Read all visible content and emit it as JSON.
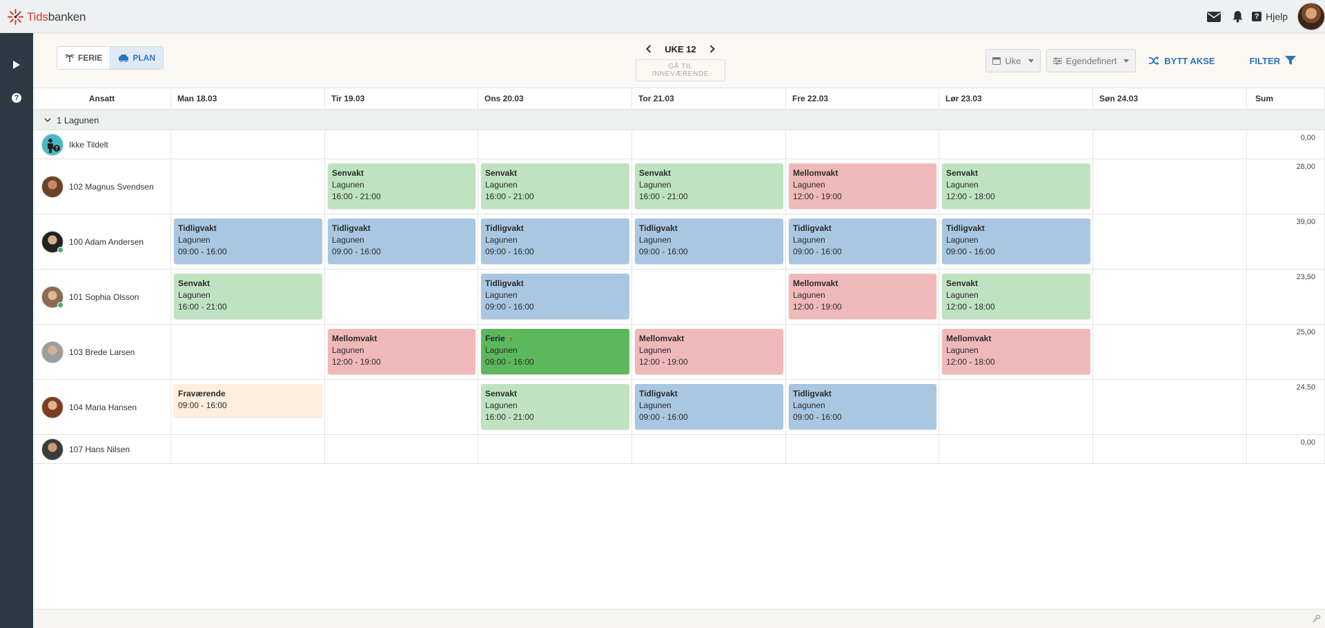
{
  "app": {
    "brand_prefix": "Tids",
    "brand_suffix": "banken",
    "help_label": "Hjelp"
  },
  "toolbar": {
    "ferie_label": "FERIE",
    "plan_label": "PLAN",
    "week_label": "UKE 12",
    "goto_current_label": "GÅ TIL INNEVÆRENDE",
    "period_select": "Uke",
    "view_select": "Egendefinert",
    "swap_axis_label": "BYTT AKSE",
    "filter_label": "FILTER"
  },
  "columns": {
    "employee_header": "Ansatt",
    "sum_header": "Sum",
    "days": [
      "Man 18.03",
      "Tir 19.03",
      "Ons 20.03",
      "Tor 21.03",
      "Fre 22.03",
      "Lør 23.03",
      "Søn 24.03"
    ]
  },
  "group": {
    "label": "1 Lagunen"
  },
  "employees": [
    {
      "name": "Ikke Tildelt",
      "sum": "0,00"
    },
    {
      "name": "102 Magnus Svendsen",
      "sum": "28,00"
    },
    {
      "name": "100 Adam Andersen",
      "sum": "39,00"
    },
    {
      "name": "101 Sophia Olsson",
      "sum": "23,50"
    },
    {
      "name": "103 Brede Larsen",
      "sum": "25,00"
    },
    {
      "name": "104 Maria Hansen",
      "sum": "24,50"
    },
    {
      "name": "107 Hans Nilsen",
      "sum": "0,00"
    }
  ],
  "shifts": [
    {
      "row": 1,
      "day": 1,
      "type": "Senvakt",
      "location": "Lagunen",
      "time": "16:00 - 21:00"
    },
    {
      "row": 1,
      "day": 2,
      "type": "Senvakt",
      "location": "Lagunen",
      "time": "16:00 - 21:00"
    },
    {
      "row": 1,
      "day": 3,
      "type": "Senvakt",
      "location": "Lagunen",
      "time": "16:00 - 21:00"
    },
    {
      "row": 1,
      "day": 4,
      "type": "Mellomvakt",
      "location": "Lagunen",
      "time": "12:00 - 19:00"
    },
    {
      "row": 1,
      "day": 5,
      "type": "Senvakt",
      "location": "Lagunen",
      "time": "12:00 - 18:00"
    },
    {
      "row": 2,
      "day": 0,
      "type": "Tidligvakt",
      "location": "Lagunen",
      "time": "09:00 - 16:00"
    },
    {
      "row": 2,
      "day": 1,
      "type": "Tidligvakt",
      "location": "Lagunen",
      "time": "09:00 - 16:00"
    },
    {
      "row": 2,
      "day": 2,
      "type": "Tidligvakt",
      "location": "Lagunen",
      "time": "09:00 - 16:00"
    },
    {
      "row": 2,
      "day": 3,
      "type": "Tidligvakt",
      "location": "Lagunen",
      "time": "09:00 - 16:00"
    },
    {
      "row": 2,
      "day": 4,
      "type": "Tidligvakt",
      "location": "Lagunen",
      "time": "09:00 - 16:00"
    },
    {
      "row": 2,
      "day": 5,
      "type": "Tidligvakt",
      "location": "Lagunen",
      "time": "09:00 - 16:00"
    },
    {
      "row": 3,
      "day": 0,
      "type": "Senvakt",
      "location": "Lagunen",
      "time": "16:00 - 21:00"
    },
    {
      "row": 3,
      "day": 2,
      "type": "Tidligvakt",
      "location": "Lagunen",
      "time": "09:00 - 16:00"
    },
    {
      "row": 3,
      "day": 4,
      "type": "Mellomvakt",
      "location": "Lagunen",
      "time": "12:00 - 19:00"
    },
    {
      "row": 3,
      "day": 5,
      "type": "Senvakt",
      "location": "Lagunen",
      "time": "12:00 - 18:00"
    },
    {
      "row": 4,
      "day": 1,
      "type": "Mellomvakt",
      "location": "Lagunen",
      "time": "12:00 - 19:00"
    },
    {
      "row": 4,
      "day": 2,
      "type": "Ferie",
      "location": "Lagunen",
      "time": "09:00 - 16:00",
      "icon": "palm-tree-icon"
    },
    {
      "row": 4,
      "day": 3,
      "type": "Mellomvakt",
      "location": "Lagunen",
      "time": "12:00 - 19:00"
    },
    {
      "row": 4,
      "day": 5,
      "type": "Mellomvakt",
      "location": "Lagunen",
      "time": "12:00 - 18:00"
    },
    {
      "row": 5,
      "day": 0,
      "type": "Fraværende",
      "location": "",
      "time": "09:00 - 16:00"
    },
    {
      "row": 5,
      "day": 2,
      "type": "Senvakt",
      "location": "Lagunen",
      "time": "16:00 - 21:00"
    },
    {
      "row": 5,
      "day": 3,
      "type": "Tidligvakt",
      "location": "Lagunen",
      "time": "09:00 - 16:00"
    },
    {
      "row": 5,
      "day": 4,
      "type": "Tidligvakt",
      "location": "Lagunen",
      "time": "09:00 - 16:00"
    }
  ],
  "shift_colors": {
    "Senvakt": "#bfe3c0",
    "Tidligvakt": "#a9c7e1",
    "Mellomvakt": "#f0b9b9",
    "Ferie": "#5cb85c",
    "Fraværende": "#fdeedd"
  },
  "accent_color": "#2a75c0"
}
